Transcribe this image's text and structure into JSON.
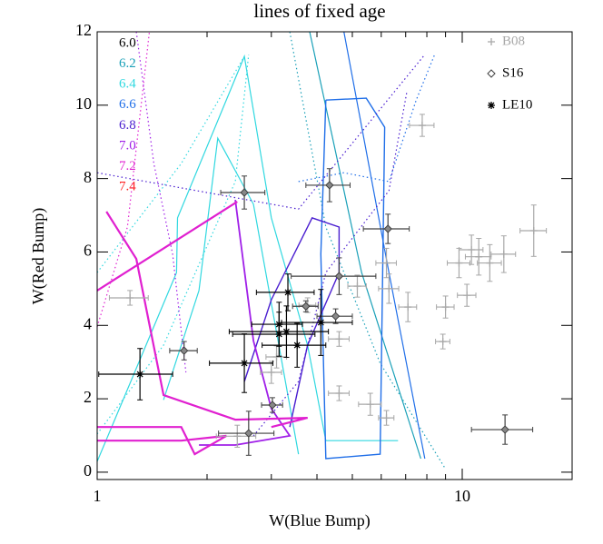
{
  "chart_data": {
    "type": "line",
    "title": "lines of fixed age",
    "x_label": "W(Blue Bump)",
    "y_label": "W(Red Bump)",
    "xlog": true,
    "xlim": [
      1,
      20
    ],
    "ylim": [
      -0.2,
      12
    ],
    "xticks": [
      1,
      10
    ],
    "yticks": [
      0,
      2,
      4,
      6,
      8,
      10,
      12
    ],
    "series": [
      {
        "name": "6.0",
        "color": "#000000",
        "lines": []
      },
      {
        "name": "6.2",
        "color": "#1aa0b8",
        "lines": [
          {
            "style": "solid",
            "width": 1.2,
            "x": [
              3.82,
              5.3,
              7.7
            ],
            "y": [
              12,
              5.44,
              0.37
            ]
          },
          {
            "style": "dotted",
            "width": 1.2,
            "x": [
              3.37,
              4.23,
              5.96,
              8.96
            ],
            "y": [
              12,
              6.68,
              2.97,
              0.12
            ]
          }
        ]
      },
      {
        "name": "6.4",
        "color": "#30d8e0",
        "lines": [
          {
            "style": "solid",
            "width": 1.2,
            "x": [
              1,
              1.65,
              1.66,
              2.53,
              3.0,
              3.77,
              4.23,
              6.67
            ],
            "y": [
              0.29,
              5.44,
              6.93,
              11.33,
              6.93,
              3.46,
              0.86,
              0.86
            ]
          },
          {
            "style": "solid",
            "width": 1.2,
            "x": [
              1.52,
              1.9,
              2.14,
              2.68,
              3.56
            ],
            "y": [
              1.97,
              4.95,
              9.1,
              7.3,
              0.49
            ]
          },
          {
            "style": "dotted",
            "width": 1.2,
            "x": [
              1,
              1.52,
              2.39,
              2.6
            ],
            "y": [
              1.04,
              3.46,
              7.92,
              11.38
            ]
          },
          {
            "style": "dotted",
            "width": 1.2,
            "x": [
              1,
              1.7,
              2.53
            ],
            "y": [
              5.44,
              8.41,
              11.33
            ]
          }
        ]
      },
      {
        "name": "6.6",
        "color": "#1f6ee8",
        "lines": [
          {
            "style": "solid",
            "width": 1.4,
            "x": [
              4.23,
              5.46,
              6.13,
              5.96,
              4.23,
              4.1,
              4.23
            ],
            "y": [
              10.14,
              10.19,
              9.4,
              0.49,
              0.37,
              5.94,
              10.14
            ]
          },
          {
            "style": "solid",
            "width": 1.2,
            "x": [
              4.74,
              6.3,
              7.9
            ],
            "y": [
              12,
              5.44,
              0.37
            ]
          },
          {
            "style": "dotted",
            "width": 1.2,
            "x": [
              3.56,
              4.74,
              6.3,
              7.48,
              8.4
            ],
            "y": [
              7.92,
              8.16,
              7.92,
              10.14,
              11.38
            ]
          }
        ]
      },
      {
        "name": "6.8",
        "color": "#4a1ed0",
        "lines": [
          {
            "style": "solid",
            "width": 1.4,
            "x": [
              2.53,
              3.0,
              3.88,
              4.6,
              4.6,
              3.77,
              3.37
            ],
            "y": [
              2.47,
              4.7,
              6.93,
              6.68,
              5.44,
              3.46,
              1.23
            ]
          },
          {
            "style": "dotted",
            "width": 1.2,
            "x": [
              1,
              3.56,
              7.9
            ],
            "y": [
              8.16,
              7.17,
              11.38
            ]
          },
          {
            "style": "dotted",
            "width": 1.2,
            "x": [
              2.68,
              3.56,
              4.23,
              6.3,
              7.06
            ],
            "y": [
              0.99,
              2.47,
              5.44,
              7.67,
              10.39
            ]
          }
        ]
      },
      {
        "name": "7.0",
        "color": "#a020e8",
        "lines": [
          {
            "style": "solid",
            "width": 1.8,
            "x": [
              2.39,
              2.68,
              3.0,
              3.37,
              2.39,
              1.9
            ],
            "y": [
              7.42,
              3.58,
              1.73,
              0.99,
              0.74,
              0.74
            ]
          },
          {
            "style": "dotted",
            "width": 1.2,
            "x": [
              1.28,
              1.43,
              1.61,
              1.75
            ],
            "y": [
              12,
              8.41,
              5.94,
              2.72
            ]
          }
        ]
      },
      {
        "name": "7.2",
        "color": "#e020d0",
        "lines": [
          {
            "style": "solid",
            "width": 2.2,
            "x": [
              1,
              2.42
            ],
            "y": [
              4.95,
              7.37
            ]
          },
          {
            "style": "solid",
            "width": 2.2,
            "x": [
              1.06,
              1.28,
              1.52,
              2.39,
              3.77,
              3.0
            ],
            "y": [
              7.1,
              5.81,
              2.1,
              1.43,
              1.48,
              1.23
            ]
          },
          {
            "style": "solid",
            "width": 2.2,
            "x": [
              1,
              1.7,
              1.85,
              2.26,
              1.7,
              1
            ],
            "y": [
              1.23,
              1.23,
              0.49,
              0.99,
              0.86,
              0.86
            ]
          },
          {
            "style": "dotted",
            "width": 1.2,
            "x": [
              1,
              1.21,
              1.39
            ],
            "y": [
              3.96,
              6.68,
              12
            ]
          }
        ]
      },
      {
        "name": "7.4",
        "color": "#ff2020",
        "lines": []
      }
    ],
    "observations": [
      {
        "name": "B08",
        "marker": "plus",
        "color": "#a8a8a8",
        "x": [
          7.77,
          15.7,
          13.0,
          11.1,
          11.9,
          9.8,
          10.6,
          10.3,
          9.0,
          8.85,
          6.2,
          6.3,
          7.1,
          5.16,
          4.6,
          3.77,
          5.6,
          6.2,
          4.6,
          3.0,
          3.1,
          2.42,
          1.23
        ],
        "y": [
          9.45,
          6.58,
          5.94,
          5.87,
          5.7,
          5.7,
          6.06,
          4.82,
          4.5,
          3.56,
          5.7,
          5.0,
          4.5,
          5.07,
          3.63,
          4.55,
          1.85,
          1.48,
          2.15,
          2.72,
          3.14,
          0.98,
          4.75
        ],
        "xerr": [
          0.6,
          1.3,
          1.0,
          0.9,
          0.9,
          0.7,
          0.8,
          0.6,
          0.5,
          0.4,
          0.4,
          0.4,
          0.4,
          0.3,
          0.3,
          0.2,
          0.4,
          0.3,
          0.3,
          0.2,
          0.2,
          0.3,
          0.15
        ],
        "yerr": [
          0.3,
          0.7,
          0.5,
          0.5,
          0.5,
          0.4,
          0.4,
          0.3,
          0.3,
          0.2,
          0.4,
          0.4,
          0.4,
          0.3,
          0.2,
          0.2,
          0.3,
          0.2,
          0.2,
          0.3,
          0.3,
          0.3,
          0.2
        ]
      },
      {
        "name": "S16",
        "marker": "diamond",
        "color": "#404040",
        "x": [
          2.53,
          4.33,
          6.26,
          4.6,
          1.73,
          2.6,
          3.02,
          3.73,
          4.5,
          13.1
        ],
        "y": [
          7.62,
          7.82,
          6.63,
          5.34,
          3.31,
          1.06,
          1.83,
          4.52,
          4.25,
          1.16
        ],
        "xerr": [
          0.35,
          0.6,
          0.9,
          1.2,
          0.15,
          0.45,
          0.2,
          0.3,
          0.5,
          2.5
        ],
        "yerr": [
          0.45,
          0.45,
          0.4,
          0.5,
          0.25,
          0.6,
          0.2,
          0.15,
          0.2,
          0.4
        ]
      },
      {
        "name": "LE10",
        "marker": "asterisk",
        "color": "#000000",
        "x": [
          1.31,
          3.33,
          3.53,
          3.15,
          2.53,
          3.3,
          4.1,
          3.15
        ],
        "y": [
          2.67,
          4.9,
          3.46,
          4.03,
          2.97,
          3.83,
          4.08,
          3.76
        ],
        "xerr": [
          0.3,
          0.6,
          0.7,
          0.5,
          0.5,
          1.0,
          0.9,
          0.8
        ],
        "yerr": [
          0.7,
          0.5,
          0.6,
          0.6,
          0.8,
          0.7,
          0.9,
          0.6
        ]
      }
    ]
  }
}
